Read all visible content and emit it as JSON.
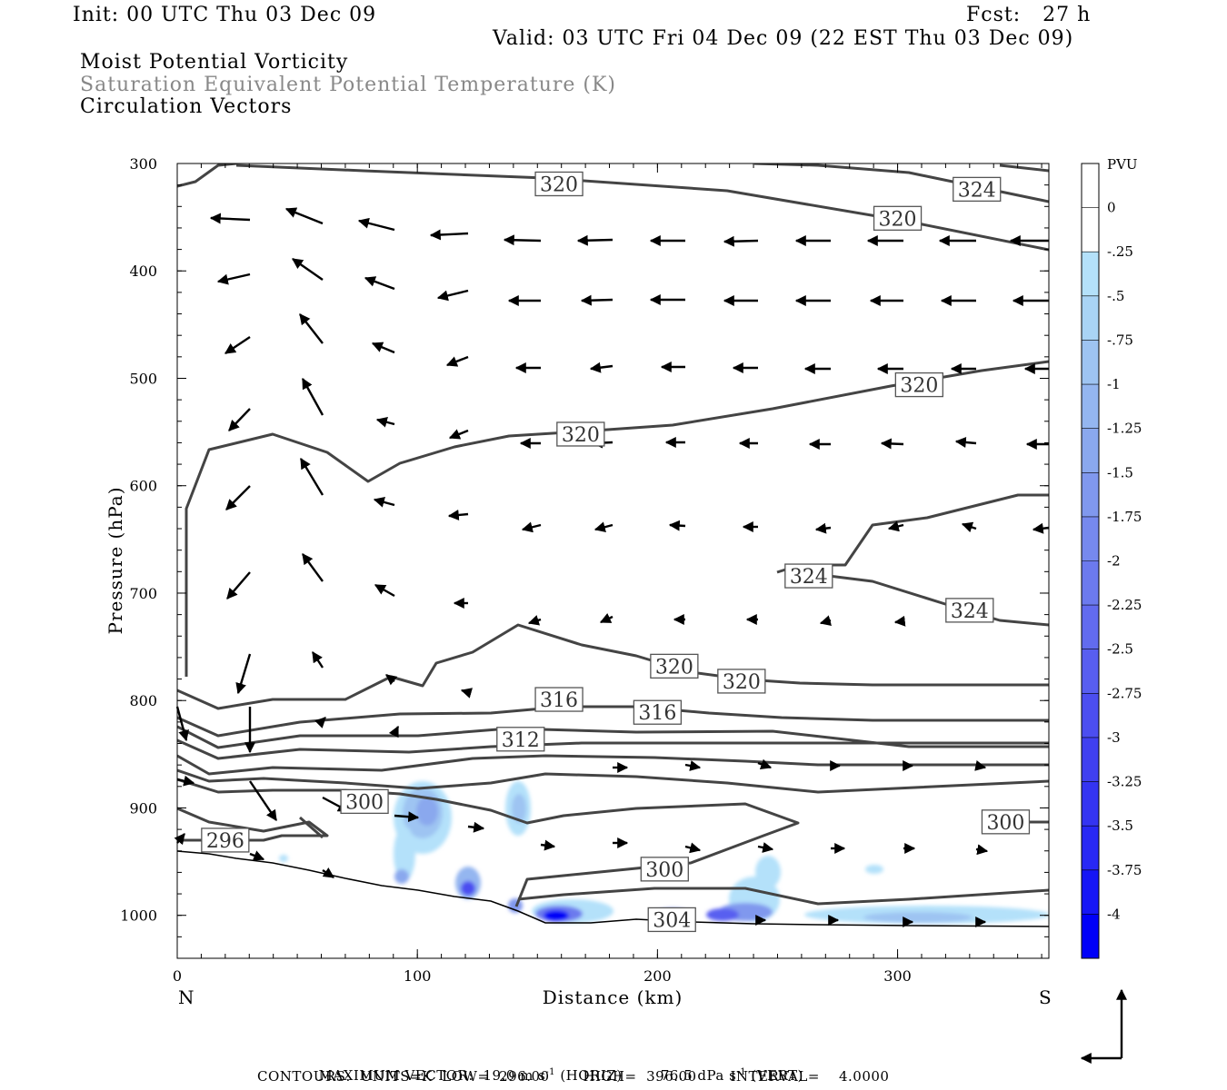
{
  "header": {
    "init": "Init: 00 UTC Thu 03 Dec 09",
    "fcst": "Fcst:   27 h",
    "valid": "Valid: 03 UTC Fri 04 Dec 09 (22 EST Thu 03 Dec 09)"
  },
  "fields": {
    "field1": "Moist Potential Vorticity",
    "field2": "Saturation Equivalent Potential Temperature (K)",
    "field3": "Circulation Vectors"
  },
  "footer": {
    "max_vector_label": "MAXIMUM VECTOR:",
    "max_horiz_value": "19.0 m s",
    "max_horiz_exp": "-1",
    "max_horiz_tag": "(HORIZ)",
    "max_vert_value": "76.5 dPa s",
    "max_vert_exp": "-1",
    "max_vert_tag": "(VERT)",
    "contours": "CONTOURS:  UNITS=K  LOW=  296.00       HIGH=  396.00       INTERVAL=    4.0000"
  },
  "colorbar": {
    "title": "PVU",
    "labels": [
      "0",
      "-.25",
      "-.5",
      "-.75",
      "-1",
      "-1.25",
      "-1.5",
      "-1.75",
      "-2",
      "-2.25",
      "-2.5",
      "-2.75",
      "-3",
      "-3.25",
      "-3.5",
      "-3.75",
      "-4"
    ],
    "colors": [
      "#ffffff",
      "#ffffff",
      "#b4e1fa",
      "#a9d4f5",
      "#9ec4f2",
      "#94b6f0",
      "#8aa8ee",
      "#8098ee",
      "#7689ee",
      "#6c7aee",
      "#626bef",
      "#585ef0",
      "#4c4ef0",
      "#4040f0",
      "#3434f2",
      "#2828f4",
      "#1616f6",
      "#0000f8"
    ]
  },
  "chart_data": {
    "type": "contour",
    "xlabel": "Distance (km)",
    "ylabel": "Pressure (hPa)",
    "x_ticks": [
      0,
      100,
      200,
      300
    ],
    "y_ticks": [
      300,
      400,
      500,
      600,
      700,
      800,
      900,
      1000
    ],
    "xlim": [
      0,
      363
    ],
    "ylim": [
      300,
      1040
    ],
    "left_end_label": "N",
    "right_end_label": "S",
    "contour_labels": [
      {
        "value": "320",
        "x": 159,
        "p": 319
      },
      {
        "value": "324",
        "x": 333,
        "p": 324
      },
      {
        "value": "320",
        "x": 300,
        "p": 351
      },
      {
        "value": "320",
        "x": 309,
        "p": 506
      },
      {
        "value": "320",
        "x": 168,
        "p": 552
      },
      {
        "value": "324",
        "x": 263,
        "p": 684
      },
      {
        "value": "324",
        "x": 330,
        "p": 716
      },
      {
        "value": "320",
        "x": 207,
        "p": 768
      },
      {
        "value": "320",
        "x": 235,
        "p": 782
      },
      {
        "value": "316",
        "x": 159,
        "p": 799
      },
      {
        "value": "316",
        "x": 200,
        "p": 811
      },
      {
        "value": "312",
        "x": 143,
        "p": 836
      },
      {
        "value": "300",
        "x": 78,
        "p": 894
      },
      {
        "value": "296",
        "x": 20,
        "p": 930
      },
      {
        "value": "300",
        "x": 345,
        "p": 913
      },
      {
        "value": "300",
        "x": 203,
        "p": 957
      },
      {
        "value": "304",
        "x": 206,
        "p": 1004
      }
    ]
  }
}
